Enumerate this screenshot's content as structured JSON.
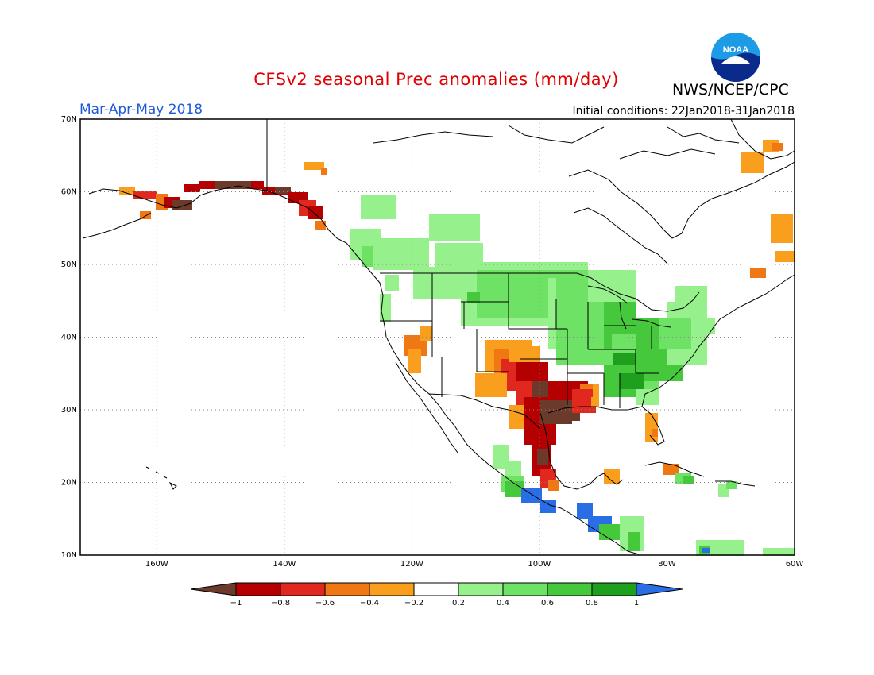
{
  "title": "CFSv2 seasonal Prec anomalies (mm/day)",
  "agency": "NWS/NCEP/CPC",
  "logo_text": "NOAA",
  "season": "Mar-Apr-May 2018",
  "initial_conditions": "Initial conditions: 22Jan2018-31Jan2018",
  "colors": {
    "title": "#e00000",
    "season": "#1e5adc",
    "neg_extreme": "#6b3a2a",
    "neg_0_8": "#b40000",
    "neg_0_6": "#e1281e",
    "neg_0_4": "#f07814",
    "neg_0_2": "#fa9e1e",
    "near_zero": "#ffffff",
    "pos_0_2": "#96f08c",
    "pos_0_4": "#6ee264",
    "pos_0_6": "#46c83c",
    "pos_0_8": "#1ea01e",
    "pos_extreme": "#2a6ee6"
  },
  "axes": {
    "lat_labels": [
      "70N",
      "60N",
      "50N",
      "40N",
      "30N",
      "20N",
      "10N"
    ],
    "lon_labels": [
      "160W",
      "140W",
      "120W",
      "100W",
      "80W",
      "60W"
    ],
    "lat_range": [
      10,
      70
    ],
    "lon_range": [
      -172,
      -60
    ]
  },
  "colorbar": {
    "ticks": [
      "-1",
      "-0.8",
      "-0.6",
      "-0.4",
      "-0.2",
      "0.2",
      "0.4",
      "0.6",
      "0.8",
      "1"
    ]
  }
}
